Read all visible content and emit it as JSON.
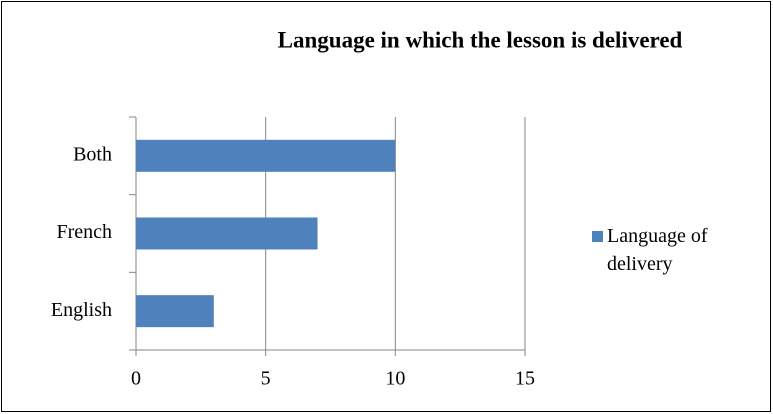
{
  "chart_data": {
    "type": "bar",
    "orientation": "horizontal",
    "title": "Language in which the lesson is delivered",
    "categories": [
      "English",
      "French",
      "Both"
    ],
    "series": [
      {
        "name": "Language of delivery",
        "color": "#4f81bd",
        "values": [
          3,
          7,
          10
        ]
      }
    ],
    "xlim": [
      0,
      15
    ],
    "xticks": [
      0,
      5,
      10,
      15
    ],
    "grid": true,
    "legend": "right"
  }
}
